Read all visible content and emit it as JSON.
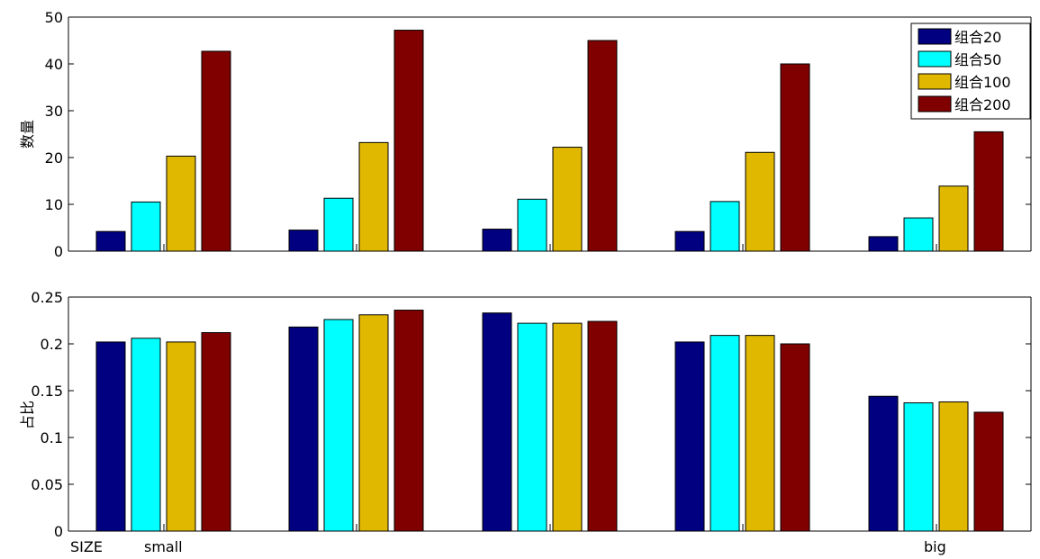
{
  "chart_data": [
    {
      "type": "bar",
      "ylabel": "数量",
      "ylim": [
        0,
        50
      ],
      "yticks": [
        0,
        10,
        20,
        30,
        40,
        50
      ],
      "grid": false,
      "legend_position": "top-right",
      "groups": 5,
      "series": [
        {
          "name": "组合20",
          "color": "#000080",
          "values": [
            4.2,
            4.5,
            4.7,
            4.2,
            3.1
          ]
        },
        {
          "name": "组合50",
          "color": "#00FFFF",
          "values": [
            10.5,
            11.3,
            11.1,
            10.6,
            7.1
          ]
        },
        {
          "name": "组合100",
          "color": "#E0B800",
          "values": [
            20.3,
            23.2,
            22.2,
            21.1,
            13.9
          ]
        },
        {
          "name": "组合200",
          "color": "#800000",
          "values": [
            42.7,
            47.2,
            45.0,
            40.0,
            25.5
          ]
        }
      ]
    },
    {
      "type": "bar",
      "ylabel": "占比",
      "ylim": [
        0,
        0.25
      ],
      "yticks": [
        "0",
        "0.05",
        "0.1",
        "0.15",
        "0.2",
        "0.25"
      ],
      "grid": false,
      "groups": 5,
      "series": [
        {
          "name": "组合20",
          "color": "#000080",
          "values": [
            0.202,
            0.218,
            0.233,
            0.202,
            0.144
          ]
        },
        {
          "name": "组合50",
          "color": "#00FFFF",
          "values": [
            0.206,
            0.226,
            0.222,
            0.209,
            0.137
          ]
        },
        {
          "name": "组合100",
          "color": "#E0B800",
          "values": [
            0.202,
            0.231,
            0.222,
            0.209,
            0.138
          ]
        },
        {
          "name": "组合200",
          "color": "#800000",
          "values": [
            0.212,
            0.236,
            0.224,
            0.2,
            0.127
          ]
        }
      ],
      "bottom_labels": {
        "size": "SIZE",
        "small": "small",
        "big": "big"
      }
    }
  ]
}
